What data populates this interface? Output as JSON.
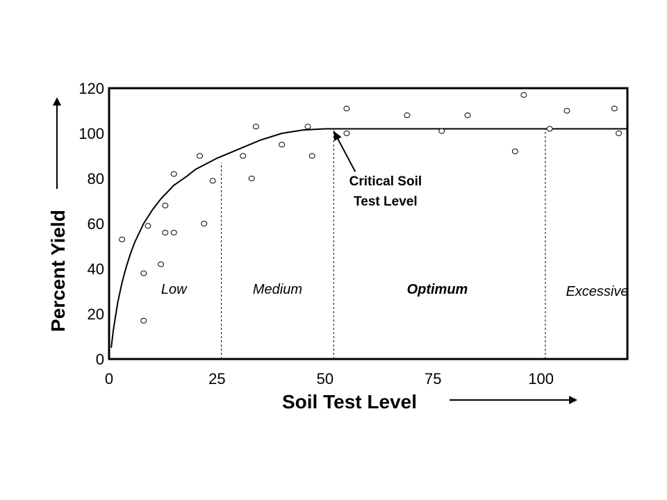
{
  "chart_data": {
    "type": "scatter",
    "xlabel": "Soil Test Level",
    "ylabel": "Percent Yield",
    "xlim": [
      0,
      120
    ],
    "ylim": [
      0,
      120
    ],
    "x_ticks": [
      0,
      25,
      50,
      75,
      100
    ],
    "y_ticks": [
      0,
      20,
      40,
      60,
      80,
      100,
      120
    ],
    "grid": false,
    "points": [
      {
        "x": 3,
        "y": 53
      },
      {
        "x": 8,
        "y": 17
      },
      {
        "x": 8,
        "y": 38
      },
      {
        "x": 9,
        "y": 59
      },
      {
        "x": 12,
        "y": 42
      },
      {
        "x": 13,
        "y": 56
      },
      {
        "x": 13,
        "y": 68
      },
      {
        "x": 15,
        "y": 56
      },
      {
        "x": 15,
        "y": 82
      },
      {
        "x": 21,
        "y": 90
      },
      {
        "x": 22,
        "y": 60
      },
      {
        "x": 24,
        "y": 79
      },
      {
        "x": 31,
        "y": 90
      },
      {
        "x": 33,
        "y": 80
      },
      {
        "x": 34,
        "y": 103
      },
      {
        "x": 40,
        "y": 95
      },
      {
        "x": 46,
        "y": 103
      },
      {
        "x": 47,
        "y": 90
      },
      {
        "x": 55,
        "y": 111
      },
      {
        "x": 55,
        "y": 100
      },
      {
        "x": 69,
        "y": 108
      },
      {
        "x": 77,
        "y": 101
      },
      {
        "x": 83,
        "y": 108
      },
      {
        "x": 94,
        "y": 92
      },
      {
        "x": 96,
        "y": 117
      },
      {
        "x": 102,
        "y": 102
      },
      {
        "x": 106,
        "y": 110
      },
      {
        "x": 117,
        "y": 111
      },
      {
        "x": 118,
        "y": 100
      }
    ],
    "curve": {
      "x": [
        0.5,
        1,
        2,
        3,
        4,
        5,
        6,
        8,
        10,
        12,
        15,
        18,
        20,
        25,
        30,
        35,
        40,
        45,
        50,
        52,
        60,
        80,
        100,
        120
      ],
      "y": [
        5,
        13,
        25,
        34,
        41,
        47,
        52,
        60,
        66,
        71,
        77,
        81,
        84,
        89,
        93,
        97,
        100,
        101.5,
        102,
        102,
        102,
        102,
        102,
        102
      ]
    },
    "divider_x": [
      26,
      52,
      101
    ],
    "zones": [
      {
        "label": "Low",
        "x": 15,
        "y": 29,
        "bold": false
      },
      {
        "label": "Medium",
        "x": 39,
        "y": 29,
        "bold": false
      },
      {
        "label": "Optimum",
        "x": 76,
        "y": 29,
        "bold": true
      },
      {
        "label": "Excessive",
        "x": 113,
        "y": 28,
        "bold": false
      }
    ],
    "annotation": {
      "lines": [
        "Critical Soil",
        "Test Level"
      ],
      "text_x": 64,
      "text_y": 77,
      "arrow_tip": [
        52,
        101
      ],
      "arrow_from": [
        57,
        83
      ]
    }
  }
}
